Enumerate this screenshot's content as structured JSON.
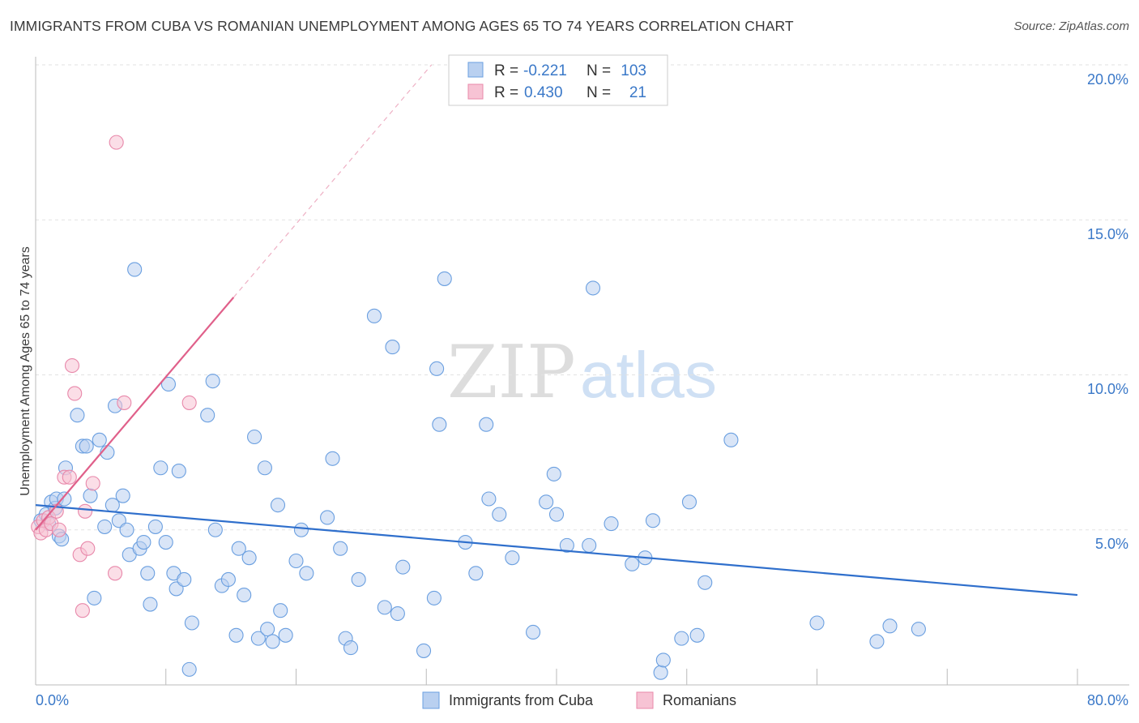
{
  "title": "IMMIGRANTS FROM CUBA VS ROMANIAN UNEMPLOYMENT AMONG AGES 65 TO 74 YEARS CORRELATION CHART",
  "source": "Source: ZipAtlas.com",
  "watermark": {
    "zip": "ZIP",
    "atlas": "atlas"
  },
  "colors": {
    "blue": "#6a9fe0",
    "blue_fill": "#b9d0f0",
    "blue_line": "#2f6fcc",
    "pink": "#e888aa",
    "pink_fill": "#f7c3d4",
    "pink_line": "#e0608a",
    "axis_label": "#3a78c8"
  },
  "legend_top": {
    "rows": [
      {
        "r_label": "R =",
        "r_value": "-0.221",
        "n_label": "N =",
        "n_value": "103"
      },
      {
        "r_label": "R =",
        "r_value": "0.430",
        "n_label": "N =",
        "n_value": "21"
      }
    ]
  },
  "legend_bottom": [
    "Immigrants from Cuba",
    "Romanians"
  ],
  "chart_data": {
    "type": "scatter",
    "title": "IMMIGRANTS FROM CUBA VS ROMANIAN UNEMPLOYMENT AMONG AGES 65 TO 74 YEARS CORRELATION CHART",
    "xlabel": "",
    "ylabel": "Unemployment Among Ages 65 to 74 years",
    "xlim": [
      0,
      80
    ],
    "ylim": [
      0,
      20
    ],
    "x_ticks_labels": [
      "0.0%",
      "80.0%"
    ],
    "y_ticks_labels": [
      "5.0%",
      "10.0%",
      "15.0%",
      "20.0%"
    ],
    "y_ticks": [
      5,
      10,
      15,
      20
    ],
    "grid": true,
    "legend_placement": "top-center",
    "series": [
      {
        "name": "Immigrants from Cuba",
        "r": -0.221,
        "n": 103,
        "trend": {
          "x": [
            0,
            80
          ],
          "y": [
            5.8,
            2.9
          ]
        },
        "points": [
          [
            0.4,
            5.3
          ],
          [
            0.8,
            5.5
          ],
          [
            1.0,
            5.2
          ],
          [
            1.2,
            5.9
          ],
          [
            1.5,
            5.7
          ],
          [
            1.6,
            6.0
          ],
          [
            1.8,
            4.8
          ],
          [
            2.0,
            4.7
          ],
          [
            2.2,
            6.0
          ],
          [
            2.3,
            7.0
          ],
          [
            3.2,
            8.7
          ],
          [
            3.6,
            7.7
          ],
          [
            3.9,
            7.7
          ],
          [
            4.2,
            6.1
          ],
          [
            4.5,
            2.8
          ],
          [
            4.9,
            7.9
          ],
          [
            5.3,
            5.1
          ],
          [
            5.5,
            7.5
          ],
          [
            5.9,
            5.8
          ],
          [
            6.1,
            9.0
          ],
          [
            6.4,
            5.3
          ],
          [
            6.7,
            6.1
          ],
          [
            7.0,
            5.0
          ],
          [
            7.2,
            4.2
          ],
          [
            7.6,
            13.4
          ],
          [
            8.0,
            4.4
          ],
          [
            8.3,
            4.6
          ],
          [
            8.6,
            3.6
          ],
          [
            8.8,
            2.6
          ],
          [
            9.2,
            5.1
          ],
          [
            9.6,
            7.0
          ],
          [
            10.0,
            4.6
          ],
          [
            10.2,
            9.7
          ],
          [
            10.6,
            3.6
          ],
          [
            10.8,
            3.1
          ],
          [
            11.0,
            6.9
          ],
          [
            11.4,
            3.4
          ],
          [
            11.8,
            0.5
          ],
          [
            12.0,
            2.0
          ],
          [
            13.2,
            8.7
          ],
          [
            13.6,
            9.8
          ],
          [
            13.8,
            5.0
          ],
          [
            14.3,
            3.2
          ],
          [
            14.8,
            3.4
          ],
          [
            15.4,
            1.6
          ],
          [
            15.6,
            4.4
          ],
          [
            16.0,
            2.9
          ],
          [
            16.4,
            4.1
          ],
          [
            16.8,
            8.0
          ],
          [
            17.1,
            1.5
          ],
          [
            17.6,
            7.0
          ],
          [
            17.8,
            1.8
          ],
          [
            18.2,
            1.4
          ],
          [
            18.6,
            5.8
          ],
          [
            18.8,
            2.4
          ],
          [
            19.2,
            1.6
          ],
          [
            20.0,
            4.0
          ],
          [
            20.4,
            5.0
          ],
          [
            20.8,
            3.6
          ],
          [
            22.4,
            5.4
          ],
          [
            22.8,
            7.3
          ],
          [
            23.4,
            4.4
          ],
          [
            23.8,
            1.5
          ],
          [
            24.2,
            1.2
          ],
          [
            24.8,
            3.4
          ],
          [
            26.0,
            11.9
          ],
          [
            26.8,
            2.5
          ],
          [
            27.4,
            10.9
          ],
          [
            27.8,
            2.3
          ],
          [
            28.2,
            3.8
          ],
          [
            29.8,
            1.1
          ],
          [
            30.6,
            2.8
          ],
          [
            30.8,
            10.2
          ],
          [
            31.0,
            8.4
          ],
          [
            31.4,
            13.1
          ],
          [
            33.0,
            4.6
          ],
          [
            33.8,
            3.6
          ],
          [
            34.6,
            8.4
          ],
          [
            34.8,
            6.0
          ],
          [
            35.6,
            5.5
          ],
          [
            36.6,
            4.1
          ],
          [
            38.2,
            1.7
          ],
          [
            39.2,
            5.9
          ],
          [
            39.8,
            6.8
          ],
          [
            40.0,
            5.5
          ],
          [
            40.8,
            4.5
          ],
          [
            42.5,
            4.5
          ],
          [
            42.8,
            12.8
          ],
          [
            44.2,
            5.2
          ],
          [
            45.8,
            3.9
          ],
          [
            46.8,
            4.1
          ],
          [
            47.4,
            5.3
          ],
          [
            48.0,
            0.4
          ],
          [
            48.2,
            0.8
          ],
          [
            49.6,
            1.5
          ],
          [
            50.2,
            5.9
          ],
          [
            50.8,
            1.6
          ],
          [
            51.4,
            3.3
          ],
          [
            53.4,
            7.9
          ],
          [
            60.0,
            2.0
          ],
          [
            64.6,
            1.4
          ],
          [
            65.6,
            1.9
          ],
          [
            67.8,
            1.8
          ]
        ]
      },
      {
        "name": "Romanians",
        "r": 0.43,
        "n": 21,
        "trend": {
          "x": [
            0,
            15.2
          ],
          "y": [
            5.0,
            12.5
          ]
        },
        "trend_dashed": {
          "x": [
            15.2,
            30.4
          ],
          "y": [
            12.5,
            20.0
          ]
        },
        "points": [
          [
            0.2,
            5.1
          ],
          [
            0.4,
            4.9
          ],
          [
            0.6,
            5.3
          ],
          [
            0.8,
            5.0
          ],
          [
            1.0,
            5.4
          ],
          [
            1.2,
            5.2
          ],
          [
            1.6,
            5.6
          ],
          [
            1.8,
            5.0
          ],
          [
            2.2,
            6.7
          ],
          [
            2.6,
            6.7
          ],
          [
            2.8,
            10.3
          ],
          [
            3.0,
            9.4
          ],
          [
            3.4,
            4.2
          ],
          [
            3.6,
            2.4
          ],
          [
            3.8,
            5.6
          ],
          [
            4.0,
            4.4
          ],
          [
            4.4,
            6.5
          ],
          [
            6.1,
            3.6
          ],
          [
            6.2,
            17.5
          ],
          [
            6.8,
            9.1
          ],
          [
            11.8,
            9.1
          ]
        ]
      }
    ]
  }
}
